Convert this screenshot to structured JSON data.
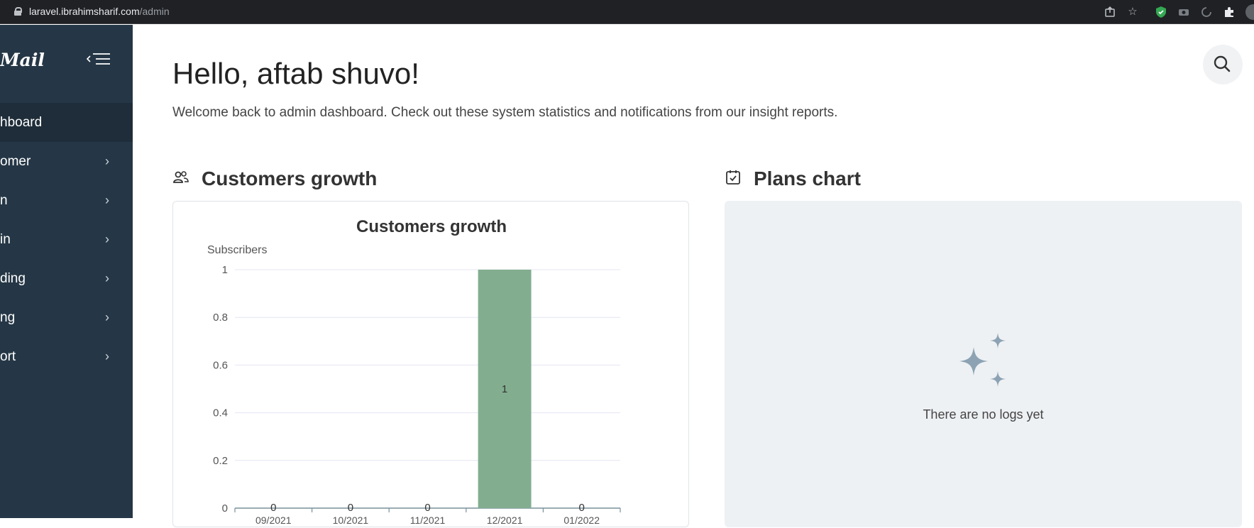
{
  "browser": {
    "url_host": "laravel.ibrahimsharif.com",
    "url_path": "/admin",
    "icons": [
      "share-icon",
      "star-icon",
      "shield-extension-icon",
      "extension-icon",
      "sync-icon",
      "puzzle-icon",
      "profile-avatar"
    ]
  },
  "sidebar": {
    "brand": "Mail",
    "items": [
      {
        "label": "hboard",
        "active": true
      },
      {
        "label": "omer"
      },
      {
        "label": "n"
      },
      {
        "label": "in"
      },
      {
        "label": "ding"
      },
      {
        "label": "ng"
      },
      {
        "label": "ort"
      }
    ]
  },
  "main": {
    "greeting": "Hello, aftab shuvo!",
    "subtitle": "Welcome back to admin dashboard. Check out these system statistics and notifications from our insight reports.",
    "customers_section": "Customers growth",
    "plans_section": "Plans chart",
    "plans_empty_text": "There are no logs yet"
  },
  "chart_data": {
    "type": "bar",
    "title": "Customers growth",
    "ylabel": "Subscribers",
    "xlabel": "",
    "categories": [
      "09/2021",
      "10/2021",
      "11/2021",
      "12/2021",
      "01/2022"
    ],
    "values": [
      0,
      0,
      0,
      1,
      0
    ],
    "ylim": [
      0,
      1
    ],
    "yticks": [
      0,
      0.2,
      0.4,
      0.6,
      0.8,
      1
    ],
    "bar_color": "#82ae8f",
    "grid": true
  }
}
